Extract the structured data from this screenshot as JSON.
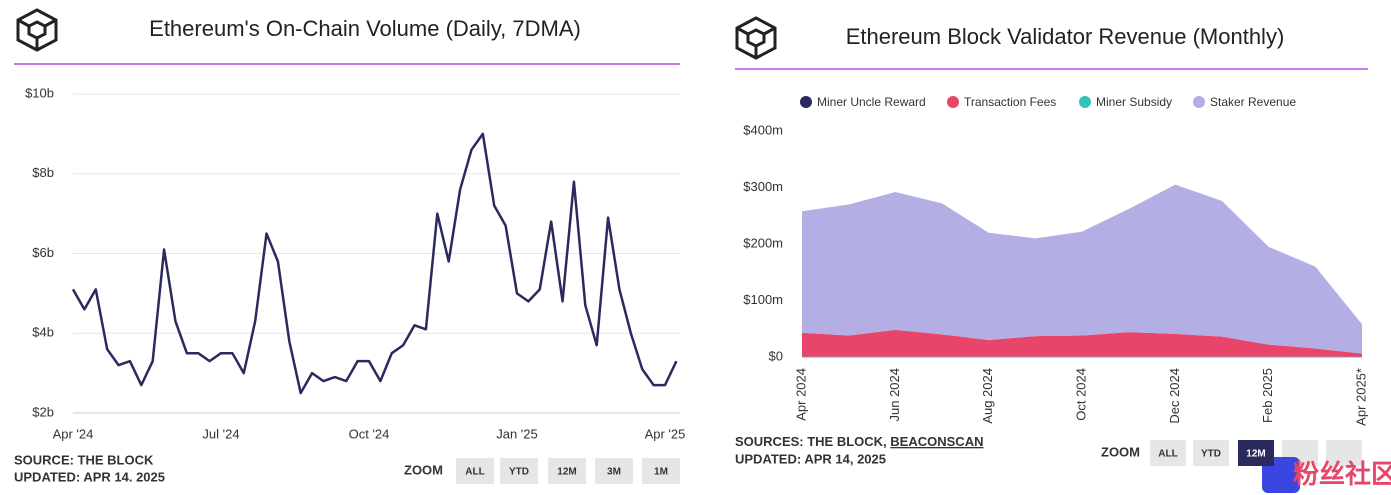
{
  "chart_data": [
    {
      "type": "line",
      "title": "Ethereum's On-Chain Volume (Daily, 7DMA)",
      "color": "#2b2a5e",
      "grid": true,
      "categories": [
        "Apr '24",
        null,
        null,
        null,
        null,
        null,
        null,
        null,
        null,
        null,
        null,
        null,
        null,
        "Jul '24",
        null,
        null,
        null,
        null,
        null,
        null,
        null,
        null,
        null,
        null,
        null,
        null,
        "Oct '24",
        null,
        null,
        null,
        null,
        null,
        null,
        null,
        null,
        null,
        null,
        null,
        null,
        "Jan '25",
        null,
        null,
        null,
        null,
        null,
        null,
        null,
        null,
        null,
        null,
        null,
        null,
        "Apr '25",
        null
      ],
      "values": [
        5.1,
        4.6,
        5.1,
        3.6,
        3.2,
        3.3,
        2.7,
        3.3,
        6.1,
        4.3,
        3.5,
        3.5,
        3.3,
        3.5,
        3.5,
        3.0,
        4.3,
        6.5,
        5.8,
        3.8,
        2.5,
        3.0,
        2.8,
        2.9,
        2.8,
        3.3,
        3.3,
        2.8,
        3.5,
        3.7,
        4.2,
        4.1,
        7.0,
        5.8,
        7.6,
        8.6,
        9.0,
        7.2,
        6.7,
        5.0,
        4.8,
        5.1,
        6.8,
        4.8,
        7.8,
        4.7,
        3.7,
        6.9,
        5.1,
        4.0,
        3.1,
        2.7,
        2.7,
        3.3
      ],
      "ylim": [
        2,
        10
      ],
      "yticks": [
        {
          "value": 2,
          "label": "$2b"
        },
        {
          "value": 4,
          "label": "$4b"
        },
        {
          "value": 6,
          "label": "$6b"
        },
        {
          "value": 8,
          "label": "$8b"
        },
        {
          "value": 10,
          "label": "$10b"
        }
      ],
      "source": "SOURCE: THE BLOCK",
      "updated": "UPDATED: APR 14. 2025",
      "zoom_label": "ZOOM",
      "zoom_buttons": [
        "ALL",
        "YTD",
        "12M",
        "3M",
        "1M"
      ]
    },
    {
      "type": "area",
      "title": "Ethereum Block Validator Revenue (Monthly)",
      "stacked": true,
      "categories": [
        "Apr 2024",
        null,
        "Jun 2024",
        null,
        "Aug 2024",
        null,
        "Oct 2024",
        null,
        "Dec 2024",
        null,
        "Feb 2025",
        null,
        "Apr 2025*"
      ],
      "series": [
        {
          "name": "Miner Uncle Reward",
          "color": "#2b2a5e",
          "values": [
            0,
            0,
            0,
            0,
            0,
            0,
            0,
            0,
            0,
            0,
            0,
            0,
            0
          ]
        },
        {
          "name": "Transaction Fees",
          "color": "#e8456b",
          "values": [
            43,
            38,
            48,
            40,
            30,
            37,
            38,
            44,
            41,
            36,
            22,
            15,
            6
          ]
        },
        {
          "name": "Miner Subsidy",
          "color": "#2ec4b6",
          "values": [
            0,
            0,
            0,
            0,
            0,
            0,
            0,
            0,
            0,
            0,
            0,
            0,
            0
          ]
        },
        {
          "name": "Staker Revenue",
          "color": "#b3aee4",
          "values": [
            215,
            232,
            244,
            232,
            190,
            173,
            184,
            218,
            264,
            240,
            173,
            145,
            52
          ]
        }
      ],
      "ylim": [
        0,
        400
      ],
      "yticks": [
        {
          "value": 0,
          "label": "$0"
        },
        {
          "value": 100,
          "label": "$100m"
        },
        {
          "value": 200,
          "label": "$200m"
        },
        {
          "value": 300,
          "label": "$300m"
        },
        {
          "value": 400,
          "label": "$400m"
        }
      ],
      "source": "SOURCES: THE BLOCK, ",
      "source_link": "BEACONSCAN",
      "updated": "UPDATED: APR 14, 2025",
      "zoom_label": "ZOOM",
      "zoom_buttons": [
        "ALL",
        "YTD",
        "12M"
      ],
      "zoom_active_index": 2
    }
  ],
  "watermark": "粉丝社区"
}
